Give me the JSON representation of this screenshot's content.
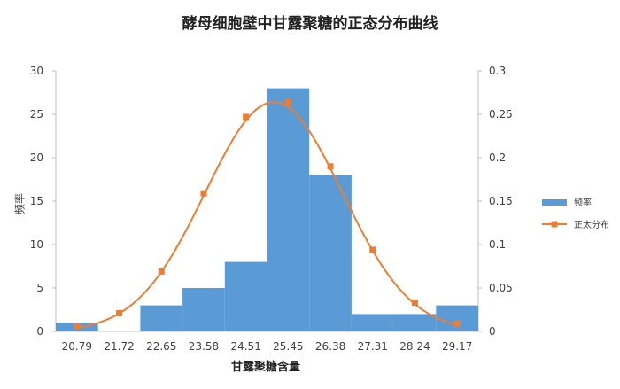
{
  "chart_data": {
    "type": "bar",
    "title": "酵母细胞壁中甘露聚糖的正态分布曲线",
    "xlabel": "甘露聚糖含量",
    "ylabel": "频率",
    "ylabel_right": "",
    "categories": [
      "20.79",
      "21.72",
      "22.65",
      "23.58",
      "24.51",
      "25.45",
      "26.38",
      "27.31",
      "28.24",
      "29.17"
    ],
    "y_ticks": [
      "0",
      "5",
      "10",
      "15",
      "20",
      "25",
      "30"
    ],
    "y2_ticks": [
      "0",
      "0.05",
      "0.1",
      "0.15",
      "0.2",
      "0.25",
      "0.3"
    ],
    "ylim": [
      0,
      30
    ],
    "y2lim": [
      0,
      0.3
    ],
    "series": [
      {
        "name": "频率",
        "type": "bar",
        "axis": "left",
        "color": "#5B9BD5",
        "values": [
          1,
          0,
          3,
          5,
          8,
          28,
          18,
          2,
          2,
          3
        ]
      },
      {
        "name": "正太分布",
        "type": "line",
        "axis": "right",
        "color": "#ED7D31",
        "values": [
          0.006,
          0.021,
          0.069,
          0.159,
          0.247,
          0.264,
          0.19,
          0.094,
          0.033,
          0.009
        ]
      }
    ],
    "legend_position": "right",
    "grid": false
  }
}
